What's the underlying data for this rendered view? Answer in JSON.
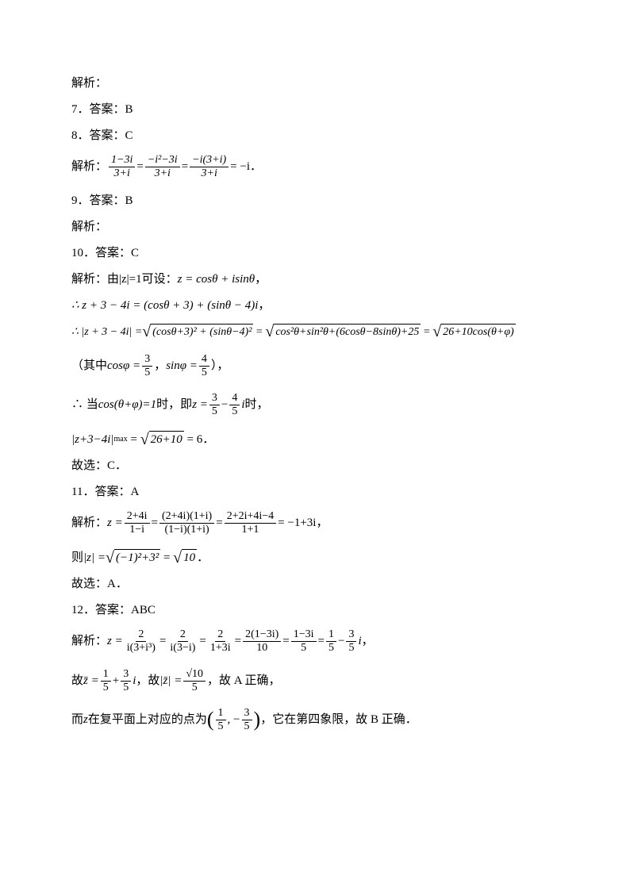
{
  "lines": {
    "l1": "解析：",
    "l2_prefix": "7．答案：",
    "l2_ans": "B",
    "l3_prefix": "8．答案：",
    "l3_ans": "C",
    "l4_prefix": "解析：",
    "l5_prefix": "9．答案：",
    "l5_ans": "B",
    "l6": "解析：",
    "l7_prefix": "10．答案：",
    "l7_ans": "C",
    "l8_prefix": "解析：由",
    "l8_mid": "可设：",
    "l11_prefix": "（其中",
    "l11_sep": "，",
    "l11_suffix": "），",
    "l12_prefix": "∴ 当",
    "l12_mid": "时，即",
    "l12_suffix": "时，",
    "l14": "故选：C．",
    "l15_prefix": "11．答案：",
    "l15_ans": "A",
    "l16_prefix": "解析：",
    "l17_prefix": "则",
    "l18": "故选：A．",
    "l19_prefix": "12．答案：",
    "l19_ans": "ABC",
    "l20_prefix": "解析：",
    "l21_prefix": "故",
    "l21_mid1": "，故",
    "l21_mid2": "，故 A 正确，",
    "l22_prefix": "而",
    "l22_mid": "在复平面上对应的点为",
    "l22_suffix": "，它在第四象限，故 B 正确．"
  },
  "math": {
    "f1_n1": "1−3i",
    "f1_d1": "3+i",
    "f1_n2": "−i²−3i",
    "f1_d2": "3+i",
    "f1_n3": "−i(3+i)",
    "f1_d3": "3+i",
    "f1_res": "= −i",
    "abs_z": "|z|=1",
    "z_cossin": "z = cosθ + isinθ",
    "z34": "∴ z + 3 − 4i = (cosθ + 3) + (sinθ − 4)i",
    "abs_z34": "∴ |z + 3 − 4i| =",
    "sq1_arg": "(cosθ+3)² + (sinθ−4)²",
    "sq2_arg": "cos²θ+sin²θ+(6cosθ−8sinθ)+25",
    "sq3_arg": "26+10cos(θ+φ)",
    "cos_phi": "cosφ =",
    "sin_phi": "sinφ =",
    "f35_n": "3",
    "f35_d": "5",
    "f45_n": "4",
    "f45_d": "5",
    "cos_tp": "cos(θ+φ)=1",
    "z_eq": "z =",
    "i_suffix": "i",
    "maxline_lhs": "|z+3−4i|",
    "max_sub": "max",
    "sq_2610": "26+10",
    "eq6": "= 6",
    "eq_sign": "=",
    "comma": "，",
    "period": "．",
    "minus": "−",
    "z11_n1": "2+4i",
    "z11_d1": "1−i",
    "z11_n2": "(2+4i)(1+i)",
    "z11_d2": "(1−i)(1+i)",
    "z11_n3": "2+2i+4i−4",
    "z11_d3": "1+1",
    "z11_res": "= −1+3i",
    "abs_z11_lhs": "|z| =",
    "sq11_arg": "(−1)²+3²",
    "sq10": "10",
    "z12_lhs": "z =",
    "z12_n1": "2",
    "z12_d1": "i(3+i³)",
    "z12_n2": "2",
    "z12_d2": "i(3−i)",
    "z12_n3": "2",
    "z12_d3": "1+3i",
    "z12_n4": "2(1−3i)",
    "z12_d4": "10",
    "z12_n5": "1−3i",
    "z12_d5": "5",
    "f15_n": "1",
    "f15_d": "5",
    "zbar": "z̄ =",
    "plus": "+",
    "abs_zbar_lhs": "|z̄| =",
    "sq10_n": "√10",
    "sq10_d": "5",
    "z_var": "z",
    "big_l": "(",
    "big_r": ")",
    "pt_sep": ", −"
  }
}
